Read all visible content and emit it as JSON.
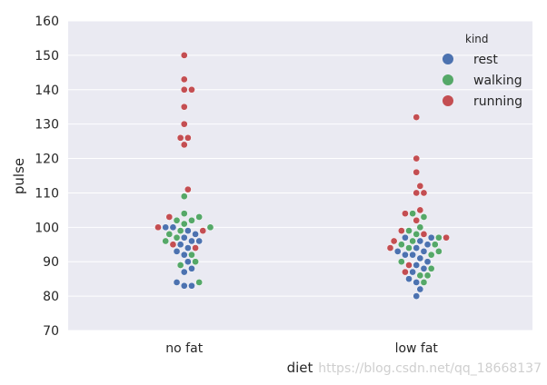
{
  "chart_data": {
    "type": "scatter",
    "subtype": "swarm",
    "title": "",
    "xlabel": "diet",
    "ylabel": "pulse",
    "categories": [
      "no fat",
      "low fat"
    ],
    "ylim": [
      70,
      160
    ],
    "yticks": [
      70,
      80,
      90,
      100,
      110,
      120,
      130,
      140,
      150,
      160
    ],
    "grid": true,
    "legend": {
      "title": "kind",
      "placement": "top-right"
    },
    "series": [
      {
        "name": "rest",
        "color": "#4C72B0",
        "values": {
          "no fat": [
            83,
            83,
            84,
            87,
            88,
            90,
            92,
            93,
            94,
            95,
            96,
            96,
            97,
            98,
            99,
            100,
            100
          ],
          "low fat": [
            80,
            82,
            84,
            85,
            87,
            88,
            89,
            90,
            91,
            92,
            92,
            93,
            93,
            94,
            95,
            96,
            97,
            97
          ]
        }
      },
      {
        "name": "walking",
        "color": "#55A868",
        "values": {
          "no fat": [
            84,
            89,
            90,
            92,
            96,
            97,
            98,
            99,
            100,
            101,
            102,
            102,
            103,
            104,
            109
          ],
          "low fat": [
            84,
            86,
            86,
            88,
            90,
            92,
            93,
            94,
            95,
            95,
            96,
            97,
            98,
            99,
            100,
            103,
            104
          ]
        }
      },
      {
        "name": "running",
        "color": "#C44E52",
        "values": {
          "no fat": [
            94,
            95,
            99,
            100,
            103,
            111,
            124,
            126,
            126,
            130,
            135,
            140,
            140,
            143,
            150
          ],
          "low fat": [
            87,
            89,
            94,
            96,
            97,
            98,
            99,
            102,
            104,
            105,
            110,
            110,
            112,
            116,
            120,
            132
          ]
        }
      }
    ]
  },
  "watermark": "https://blog.csdn.net/qq_18668137"
}
